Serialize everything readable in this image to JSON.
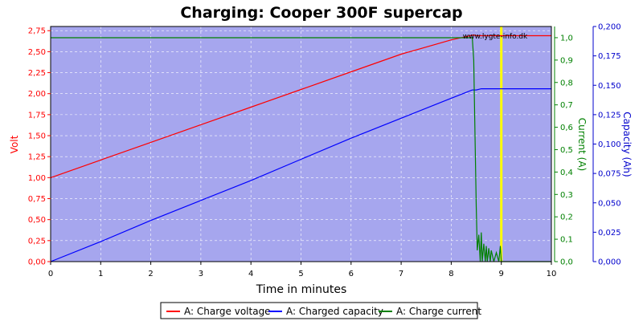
{
  "chart_data": {
    "type": "line",
    "title": "Charging: Cooper 300F supercap",
    "watermark": "www.lygte-info.dk",
    "xlabel": "Time in minutes",
    "xlim": [
      0,
      10
    ],
    "x_ticks": [
      "0",
      "1",
      "2",
      "3",
      "4",
      "5",
      "6",
      "7",
      "8",
      "9",
      "10"
    ],
    "grid": true,
    "legend_position": "bottom",
    "axes": {
      "volt": {
        "label": "Volt",
        "color": "#ff0000",
        "lim": [
          0,
          2.8
        ],
        "ticks": [
          0,
          0.25,
          0.5,
          0.75,
          1.0,
          1.25,
          1.5,
          1.75,
          2.0,
          2.25,
          2.5,
          2.75
        ],
        "tick_labels": [
          "0,00",
          "0,25",
          "0,50",
          "0,75",
          "1,00",
          "1,25",
          "1,50",
          "1,75",
          "2,00",
          "2,25",
          "2,50",
          "2,75"
        ]
      },
      "current": {
        "label": "Current (A)",
        "color": "#008000",
        "lim": [
          0,
          1.05
        ],
        "ticks": [
          0,
          0.1,
          0.2,
          0.3,
          0.4,
          0.5,
          0.6,
          0.7,
          0.8,
          0.9,
          1.0
        ],
        "tick_labels": [
          "0,0",
          "0,1",
          "0,2",
          "0,3",
          "0,4",
          "0,5",
          "0,6",
          "0,7",
          "0,8",
          "0,9",
          "1,0"
        ]
      },
      "capacity": {
        "label": "Capacity (Ah)",
        "color": "#0000cc",
        "lim": [
          0,
          0.2
        ],
        "ticks": [
          0,
          0.025,
          0.05,
          0.075,
          0.1,
          0.125,
          0.15,
          0.175,
          0.2
        ],
        "tick_labels": [
          "0,000",
          "0,025",
          "0,050",
          "0,075",
          "0,100",
          "0,125",
          "0,150",
          "0,175",
          "0,200"
        ]
      }
    },
    "marker_x": 9.0,
    "marker_color": "#ffff00",
    "series": [
      {
        "name": "A: Charge voltage",
        "axis": "volt",
        "color": "#ff0000",
        "x": [
          0,
          1,
          2,
          3,
          4,
          5,
          6,
          7,
          8,
          8.45,
          8.5,
          9.0,
          10
        ],
        "y": [
          1.0,
          1.21,
          1.42,
          1.63,
          1.84,
          2.05,
          2.26,
          2.47,
          2.64,
          2.7,
          2.69,
          2.69,
          2.69
        ]
      },
      {
        "name": "A: Charged capacity",
        "axis": "capacity",
        "color": "#0000ff",
        "x": [
          0,
          1,
          2,
          3,
          4,
          5,
          6,
          7,
          8,
          8.42,
          8.5,
          8.6,
          9.0,
          10
        ],
        "y": [
          0.0,
          0.017,
          0.035,
          0.052,
          0.069,
          0.087,
          0.105,
          0.122,
          0.139,
          0.146,
          0.146,
          0.147,
          0.147,
          0.147
        ]
      },
      {
        "name": "A: Charge current",
        "axis": "current",
        "color": "#008000",
        "x": [
          0,
          8.42,
          8.45,
          8.48,
          8.5,
          8.52,
          8.55,
          8.58,
          8.6,
          8.62,
          8.65,
          8.68,
          8.7,
          8.72,
          8.75,
          8.78,
          8.8,
          8.85,
          8.9,
          8.95,
          8.98,
          9.0,
          10
        ],
        "y": [
          1.0,
          1.0,
          0.9,
          0.5,
          0.25,
          0.05,
          0.12,
          0.0,
          0.13,
          0.0,
          0.08,
          0.0,
          0.07,
          0.0,
          0.06,
          0.0,
          0.05,
          0.0,
          0.04,
          0.0,
          0.07,
          0.0,
          0.0
        ]
      }
    ]
  }
}
